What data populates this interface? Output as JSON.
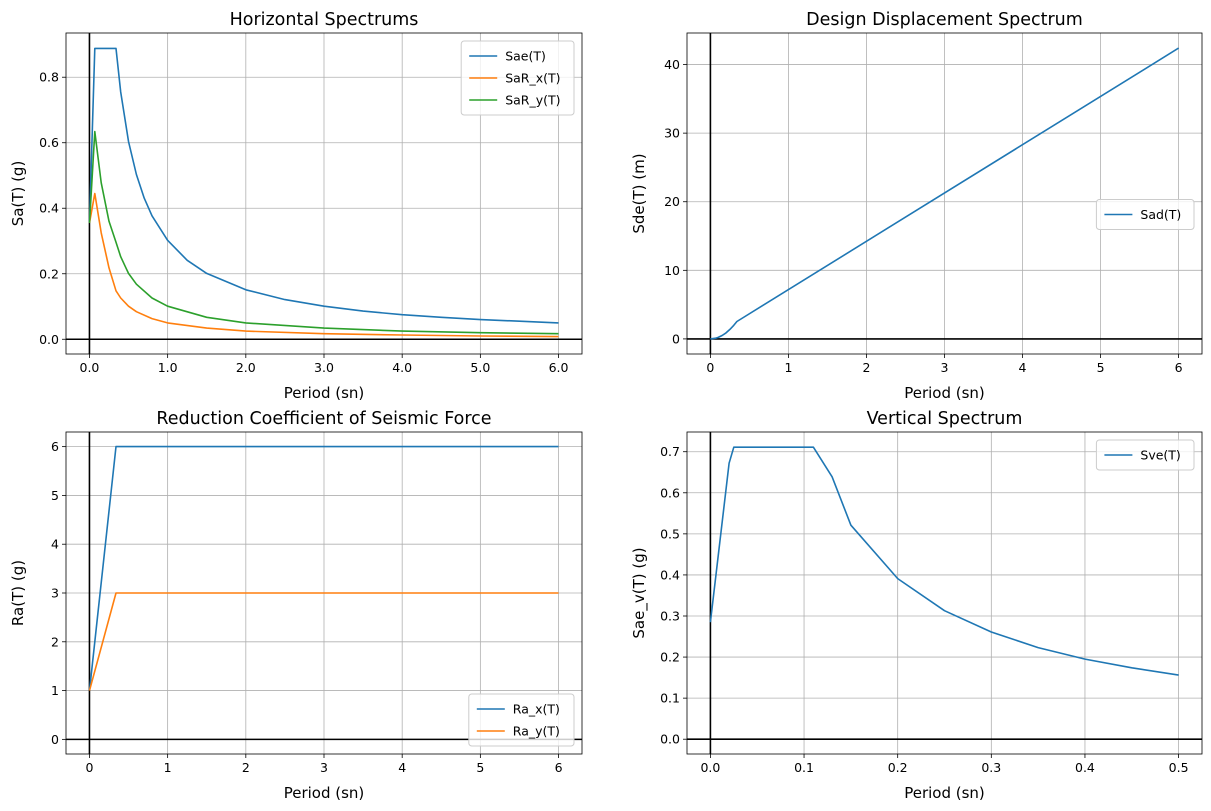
{
  "chart_data": [
    {
      "type": "line",
      "title": "Horizontal Spectrums",
      "xlabel": "Period (sn)",
      "ylabel": "Sa(T) (g)",
      "xlim": [
        -0.3,
        6.3
      ],
      "ylim": [
        -0.045,
        0.935
      ],
      "xticks": [
        0,
        1,
        2,
        3,
        4,
        5,
        6
      ],
      "yticks": [
        0.0,
        0.2,
        0.4,
        0.6,
        0.8
      ],
      "tick_decimals": 1,
      "legend_position": "upper-right",
      "grid": true,
      "series": [
        {
          "name": "Sae(T)",
          "color": "#1f77b4",
          "x": [
            0,
            0.068,
            0.34,
            0.4,
            0.5,
            0.6,
            0.7,
            0.8,
            1,
            1.25,
            1.5,
            2,
            2.5,
            3,
            3.5,
            4,
            4.5,
            5,
            5.5,
            6
          ],
          "y": [
            0.355,
            0.888,
            0.888,
            0.755,
            0.604,
            0.503,
            0.431,
            0.377,
            0.302,
            0.241,
            0.201,
            0.151,
            0.121,
            0.101,
            0.086,
            0.075,
            0.067,
            0.06,
            0.055,
            0.05
          ]
        },
        {
          "name": "SaR_x(T)",
          "color": "#ff7f0e",
          "x": [
            0,
            0.068,
            0.15,
            0.25,
            0.34,
            0.4,
            0.5,
            0.6,
            0.8,
            1,
            1.5,
            2,
            3,
            4,
            5,
            6
          ],
          "y": [
            0.355,
            0.445,
            0.325,
            0.218,
            0.148,
            0.126,
            0.101,
            0.084,
            0.063,
            0.05,
            0.034,
            0.025,
            0.017,
            0.013,
            0.01,
            0.008
          ]
        },
        {
          "name": "SaR_y(T)",
          "color": "#2ca02c",
          "x": [
            0,
            0.068,
            0.15,
            0.25,
            0.34,
            0.4,
            0.5,
            0.6,
            0.8,
            1,
            1.5,
            2,
            3,
            4,
            5,
            6
          ],
          "y": [
            0.355,
            0.634,
            0.478,
            0.36,
            0.296,
            0.252,
            0.201,
            0.168,
            0.126,
            0.101,
            0.067,
            0.05,
            0.034,
            0.025,
            0.02,
            0.017
          ]
        }
      ]
    },
    {
      "type": "line",
      "title": "Design Displacement Spectrum",
      "xlabel": "Period (sn)",
      "ylabel": "Sde(T) (m)",
      "xlim": [
        -0.3,
        6.3
      ],
      "ylim": [
        -2.2,
        44.6
      ],
      "xticks": [
        0,
        1,
        2,
        3,
        4,
        5,
        6
      ],
      "yticks": [
        0,
        10,
        20,
        30,
        40
      ],
      "tick_decimals": 0,
      "legend_position": "center-right",
      "grid": true,
      "series": [
        {
          "name": "Sad(T)",
          "color": "#1f77b4",
          "x": [
            0,
            0.068,
            0.1,
            0.15,
            0.2,
            0.25,
            0.3,
            0.34,
            6
          ],
          "y": [
            0,
            0.1,
            0.22,
            0.5,
            0.88,
            1.38,
            1.98,
            2.54,
            42.4
          ]
        }
      ]
    },
    {
      "type": "line",
      "title": "Reduction Coefficient of Seismic Force",
      "xlabel": "Period (sn)",
      "ylabel": "Ra(T) (g)",
      "xlim": [
        -0.3,
        6.3
      ],
      "ylim": [
        -0.3,
        6.3
      ],
      "xticks": [
        0,
        1,
        2,
        3,
        4,
        5,
        6
      ],
      "yticks": [
        0,
        1,
        2,
        3,
        4,
        5,
        6
      ],
      "tick_decimals": 0,
      "legend_position": "lower-right",
      "grid": true,
      "series": [
        {
          "name": "Ra_x(T)",
          "color": "#1f77b4",
          "x": [
            0,
            0.34,
            6
          ],
          "y": [
            1,
            6,
            6
          ]
        },
        {
          "name": "Ra_y(T)",
          "color": "#ff7f0e",
          "x": [
            0,
            0.34,
            6
          ],
          "y": [
            1,
            3,
            3
          ]
        }
      ]
    },
    {
      "type": "line",
      "title": "Vertical Spectrum",
      "xlabel": "Period (sn)",
      "ylabel": "Sae_v(T) (g)",
      "xlim": [
        -0.025,
        0.525
      ],
      "ylim": [
        -0.036,
        0.748
      ],
      "xticks": [
        0.0,
        0.1,
        0.2,
        0.3,
        0.4,
        0.5
      ],
      "yticks": [
        0.0,
        0.1,
        0.2,
        0.3,
        0.4,
        0.5,
        0.6,
        0.7
      ],
      "tick_decimals": 1,
      "legend_position": "upper-right",
      "grid": true,
      "series": [
        {
          "name": "Sve(T)",
          "color": "#1f77b4",
          "x": [
            0,
            0.02,
            0.025,
            0.1,
            0.11,
            0.13,
            0.15,
            0.2,
            0.25,
            0.3,
            0.35,
            0.4,
            0.45,
            0.5
          ],
          "y": [
            0.285,
            0.672,
            0.711,
            0.711,
            0.711,
            0.639,
            0.521,
            0.391,
            0.313,
            0.261,
            0.223,
            0.195,
            0.174,
            0.156
          ]
        }
      ]
    }
  ]
}
